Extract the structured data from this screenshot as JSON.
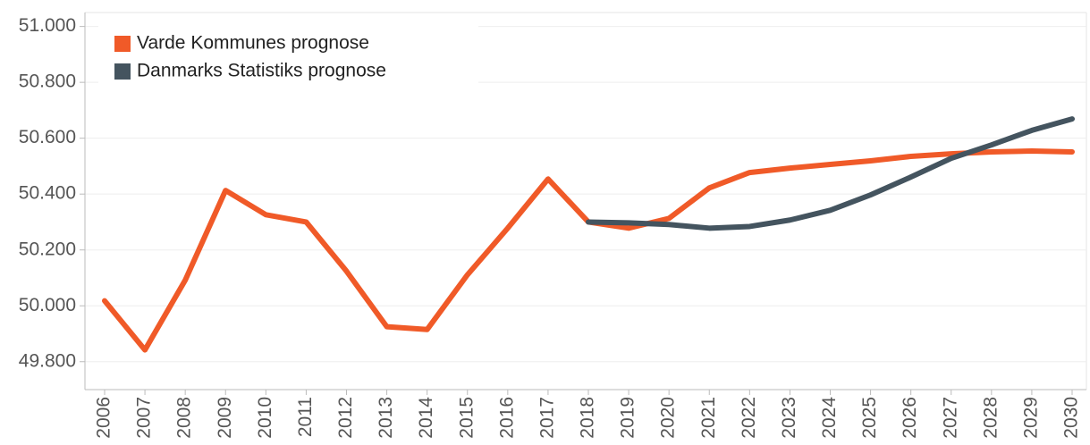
{
  "chart_data": {
    "type": "line",
    "categories": [
      "2006",
      "2007",
      "2008",
      "2009",
      "2010",
      "2011",
      "2012",
      "2013",
      "2014",
      "2015",
      "2016",
      "2017",
      "2018",
      "2019",
      "2020",
      "2021",
      "2022",
      "2023",
      "2024",
      "2025",
      "2026",
      "2027",
      "2028",
      "2029",
      "2030"
    ],
    "series": [
      {
        "name": "Varde Kommunes prognose",
        "color": "#f05a28",
        "values": [
          50018,
          49842,
          50092,
          50413,
          50326,
          50300,
          50124,
          49925,
          49915,
          50111,
          50278,
          50454,
          50300,
          50278,
          50313,
          50422,
          50477,
          50493,
          50506,
          50519,
          50535,
          50544,
          50551,
          50554,
          50551
        ]
      },
      {
        "name": "Danmarks Statistiks prognose",
        "color": "#44545f",
        "values": [
          null,
          null,
          null,
          null,
          null,
          null,
          null,
          null,
          null,
          null,
          null,
          null,
          50300,
          50297,
          50291,
          50278,
          50284,
          50307,
          50342,
          50397,
          50461,
          50528,
          50576,
          50628,
          50669
        ]
      }
    ],
    "ylim": [
      49700,
      51050
    ],
    "yticks": [
      {
        "value": 49800,
        "label": "49.800"
      },
      {
        "value": 50000,
        "label": "50.000"
      },
      {
        "value": 50200,
        "label": "50.200"
      },
      {
        "value": 50400,
        "label": "50.400"
      },
      {
        "value": 50600,
        "label": "50.600"
      },
      {
        "value": 50800,
        "label": "50.800"
      },
      {
        "value": 51000,
        "label": "51.000"
      }
    ],
    "grid": true,
    "legend": "top-left"
  }
}
